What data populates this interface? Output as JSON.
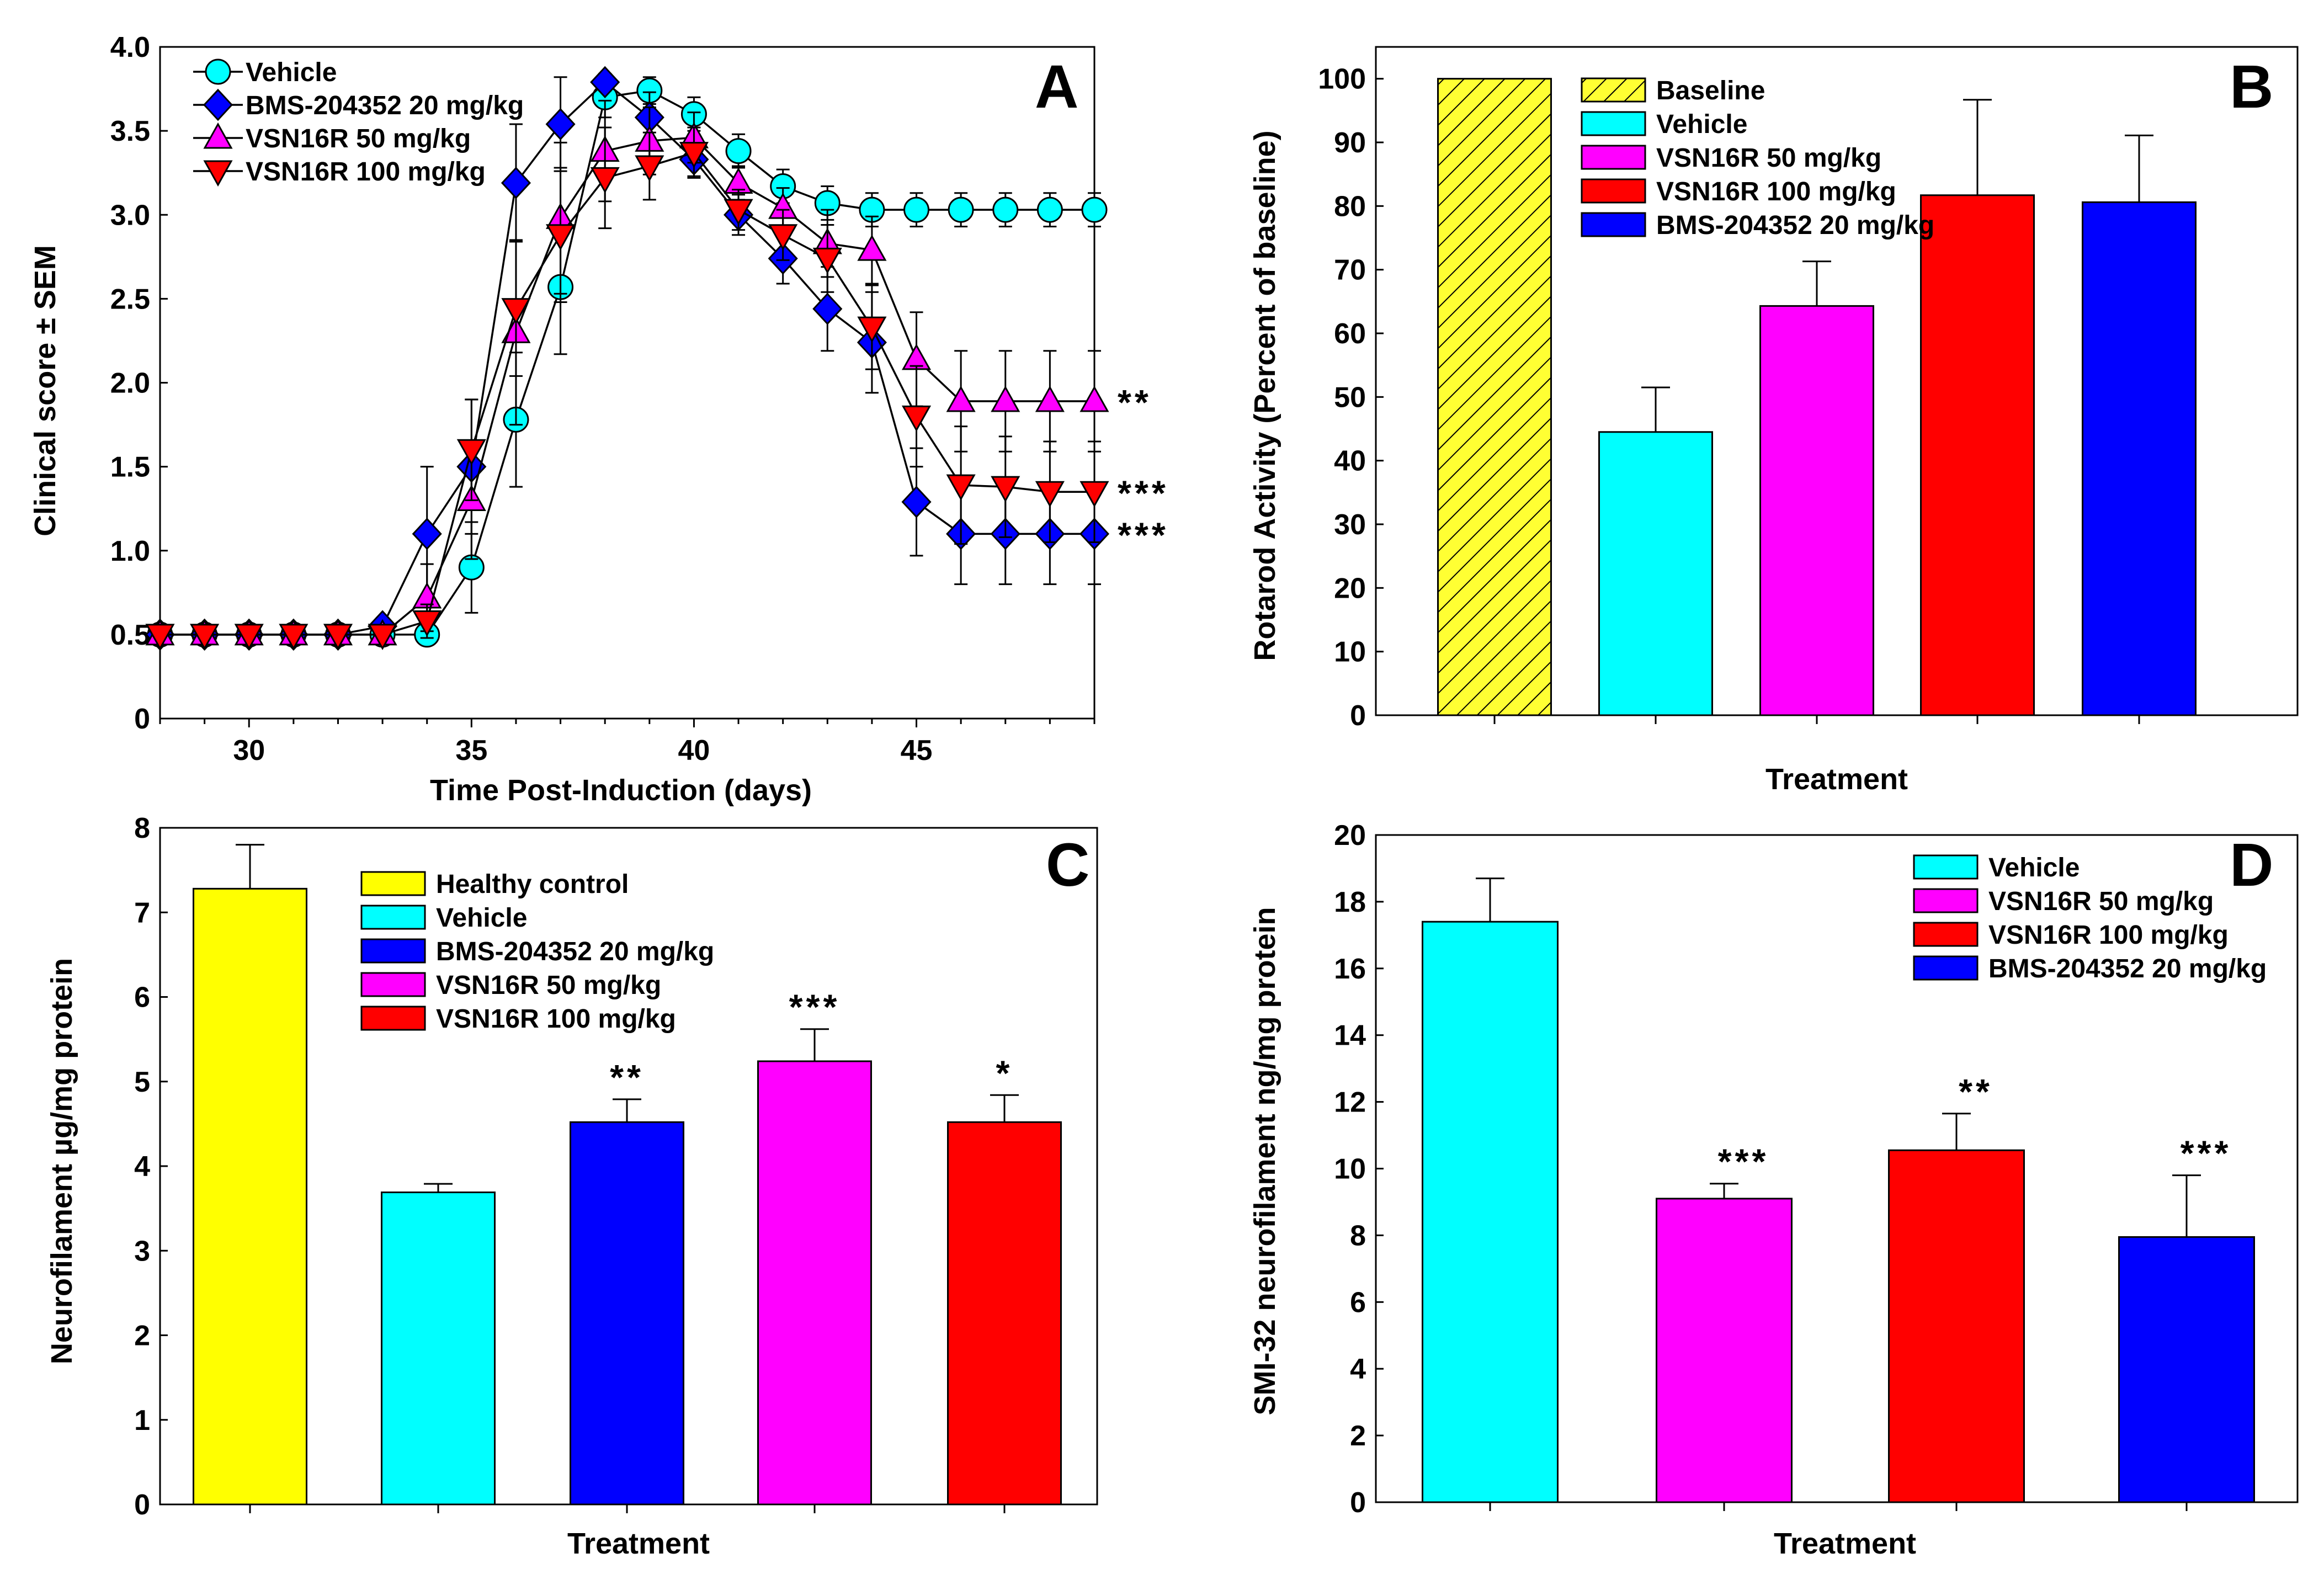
{
  "colors": {
    "vehicle": "#00ffff",
    "bms": "#0000ff",
    "vsn50": "#ff00ff",
    "vsn100": "#ff0000",
    "baseline": "#ffff33",
    "healthy": "#ffff00"
  },
  "chart_data": [
    {
      "panel": "A",
      "type": "line",
      "xlabel": "Time Post-Induction (days)",
      "ylabel": "Clinical score ± SEM",
      "xlim": [
        28,
        49
      ],
      "ylim": [
        0,
        4
      ],
      "xticks": [
        "30",
        "35",
        "40",
        "45"
      ],
      "yticks": [
        "0",
        "0.5",
        "1.0",
        "1.5",
        "2.0",
        "2.5",
        "3.0",
        "3.5",
        "4.0"
      ],
      "x": [
        28,
        29,
        30,
        31,
        32,
        33,
        34,
        35,
        36,
        37,
        38,
        39,
        40,
        41,
        42,
        43,
        44,
        45,
        46,
        47,
        48,
        49
      ],
      "series": [
        {
          "name": "Vehicle",
          "marker": "circle",
          "color": "#00ffff",
          "values": [
            0.5,
            0.5,
            0.5,
            0.5,
            0.5,
            0.5,
            0.5,
            0.9,
            1.78,
            2.57,
            3.7,
            3.74,
            3.6,
            3.38,
            3.17,
            3.07,
            3.03,
            3.03,
            3.03,
            3.03,
            3.03,
            3.03
          ],
          "errors": [
            0,
            0,
            0,
            0,
            0,
            0,
            0,
            0.27,
            0.4,
            0.4,
            0.12,
            0.08,
            0.1,
            0.1,
            0.1,
            0.1,
            0.1,
            0.1,
            0.1,
            0.1,
            0.1,
            0.1
          ],
          "annotation": ""
        },
        {
          "name": "BMS-204352 20 mg/kg",
          "marker": "diamond",
          "color": "#0000ff",
          "values": [
            0.5,
            0.5,
            0.5,
            0.5,
            0.5,
            0.55,
            1.1,
            1.5,
            3.19,
            3.54,
            3.79,
            3.58,
            3.33,
            3.0,
            2.74,
            2.44,
            2.24,
            1.29,
            1.1,
            1.1,
            1.1,
            1.1
          ],
          "errors": [
            0,
            0,
            0,
            0,
            0,
            0.05,
            0.4,
            0.4,
            0.35,
            0.28,
            0.05,
            0.15,
            0.1,
            0.12,
            0.15,
            0.25,
            0.3,
            0.32,
            0.3,
            0.3,
            0.3,
            0.3
          ],
          "annotation": "***"
        },
        {
          "name": "VSN16R 50 mg/kg",
          "marker": "triangle-up",
          "color": "#ff00ff",
          "values": [
            0.5,
            0.5,
            0.5,
            0.5,
            0.5,
            0.5,
            0.72,
            1.3,
            2.3,
            2.98,
            3.38,
            3.44,
            3.46,
            3.19,
            3.04,
            2.83,
            2.79,
            2.14,
            1.89,
            1.89,
            1.89,
            1.89
          ],
          "errors": [
            0,
            0,
            0,
            0,
            0,
            0,
            0.2,
            0.35,
            0.55,
            0.45,
            0.3,
            0.2,
            0.15,
            0.1,
            0.12,
            0.2,
            0.2,
            0.28,
            0.3,
            0.3,
            0.3,
            0.3
          ],
          "annotation": "**"
        },
        {
          "name": "VSN16R 100 mg/kg",
          "marker": "triangle-down",
          "color": "#ff0000",
          "values": [
            0.5,
            0.5,
            0.5,
            0.5,
            0.5,
            0.5,
            0.58,
            1.6,
            2.44,
            2.88,
            3.22,
            3.29,
            3.37,
            3.03,
            2.88,
            2.74,
            2.33,
            1.8,
            1.39,
            1.38,
            1.35,
            1.35
          ],
          "errors": [
            0,
            0,
            0,
            0,
            0,
            0,
            0.1,
            0.3,
            0.4,
            0.4,
            0.3,
            0.2,
            0.15,
            0.12,
            0.15,
            0.2,
            0.25,
            0.3,
            0.35,
            0.3,
            0.3,
            0.3
          ],
          "annotation": "***"
        }
      ]
    },
    {
      "panel": "B",
      "type": "bar",
      "xlabel": "Treatment",
      "ylabel": "Rotarod Activity (Percent of baseline)",
      "ylim": [
        0,
        105
      ],
      "yticks": [
        "0",
        "10",
        "20",
        "30",
        "40",
        "50",
        "60",
        "70",
        "80",
        "90",
        "100"
      ],
      "categories": [
        "Baseline",
        "Vehicle",
        "VSN16R 50 mg/kg",
        "VSN16R 100 mg/kg",
        "BMS-204352 20 mg/kg"
      ],
      "values": [
        100,
        44.5,
        64.3,
        81.7,
        80.6
      ],
      "errors": [
        0,
        7,
        7,
        15,
        10.5
      ],
      "colors": [
        "#ffff33",
        "#00ffff",
        "#ff00ff",
        "#ff0000",
        "#0000ff"
      ],
      "hatched": [
        true,
        false,
        false,
        false,
        false
      ]
    },
    {
      "panel": "C",
      "type": "bar",
      "xlabel": "Treatment",
      "ylabel": "Neurofilament µg/mg protein",
      "ylim": [
        0,
        8
      ],
      "yticks": [
        "0",
        "1",
        "2",
        "3",
        "4",
        "5",
        "6",
        "7",
        "8"
      ],
      "categories": [
        "Healthy control",
        "Vehicle",
        "BMS-204352 20 mg/kg",
        "VSN16R 50 mg/kg",
        "VSN16R 100 mg/kg"
      ],
      "values": [
        7.28,
        3.69,
        4.52,
        5.24,
        4.52
      ],
      "errors": [
        0.52,
        0.1,
        0.27,
        0.38,
        0.32
      ],
      "colors": [
        "#ffff00",
        "#00ffff",
        "#0000ff",
        "#ff00ff",
        "#ff0000"
      ],
      "annotations": [
        "",
        "",
        "**",
        "***",
        "*"
      ]
    },
    {
      "panel": "D",
      "type": "bar",
      "xlabel": "Treatment",
      "ylabel": "SMI-32 neurofilament ng/mg protein",
      "ylim": [
        0,
        20
      ],
      "yticks": [
        "0",
        "2",
        "4",
        "6",
        "8",
        "10",
        "12",
        "14",
        "16",
        "18",
        "20"
      ],
      "categories": [
        "Vehicle",
        "VSN16R 50 mg/kg",
        "VSN16R 100 mg/kg",
        "BMS-204352 20 mg/kg"
      ],
      "values": [
        17.4,
        9.1,
        10.55,
        7.95
      ],
      "errors": [
        1.3,
        0.45,
        1.1,
        1.85
      ],
      "colors": [
        "#00ffff",
        "#ff00ff",
        "#ff0000",
        "#0000ff"
      ],
      "annotations": [
        "",
        "***",
        "**",
        "***"
      ]
    }
  ],
  "legends": {
    "A": [
      "Vehicle",
      "BMS-204352 20 mg/kg",
      "VSN16R   50 mg/kg",
      "VSN16R 100 mg/kg"
    ],
    "B": [
      "Baseline",
      "Vehicle",
      "VSN16R   50 mg/kg",
      "VSN16R 100 mg/kg",
      "BMS-204352 20 mg/kg"
    ],
    "C": [
      "Healthy control",
      "Vehicle",
      "BMS-204352 20 mg/kg",
      "VSN16R   50 mg/kg",
      "VSN16R 100 mg/kg"
    ],
    "D": [
      "Vehicle",
      "VSN16R   50 mg/kg",
      "VSN16R 100 mg/kg",
      "BMS-204352 20 mg/kg"
    ]
  }
}
